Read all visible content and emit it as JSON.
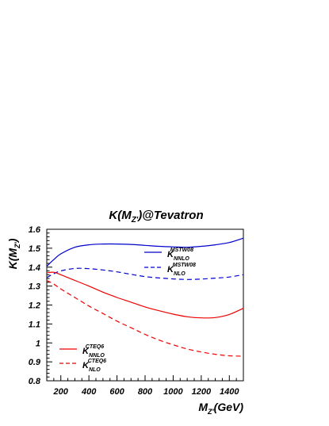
{
  "chart_data": {
    "type": "line",
    "title": "K(M_Z')@Tevatron",
    "title_parts": {
      "pre": "K(M",
      "sub": "Z'",
      "post": ")@Tevatron"
    },
    "xlabel_parts": {
      "pre": "M",
      "sub": "Z'",
      "post": "(GeV)"
    },
    "ylabel_parts": {
      "pre": "K(M",
      "sub": "Z'",
      "post": ")"
    },
    "xlim": [
      100,
      1500
    ],
    "ylim": [
      0.8,
      1.6
    ],
    "x_ticks": [
      200,
      400,
      600,
      800,
      1000,
      1200,
      1400
    ],
    "y_ticks": [
      0.8,
      0.9,
      1,
      1.1,
      1.2,
      1.3,
      1.4,
      1.5,
      1.6
    ],
    "x_tick_labels": [
      "200",
      "400",
      "600",
      "800",
      "1000",
      "1200",
      "1400"
    ],
    "y_tick_labels": [
      "0.8",
      "0.9",
      "1",
      "1.1",
      "1.2",
      "1.3",
      "1.4",
      "1.5",
      "1.6"
    ],
    "grid": false,
    "legend_placement": "inline",
    "series": [
      {
        "name": "K_NNLO^MSTW08",
        "label_main": "K",
        "label_sub": "NNLO",
        "label_sup": "MSTW08",
        "color": "#0000cc",
        "dash": "solid",
        "x": [
          100,
          150,
          200,
          300,
          400,
          500,
          600,
          700,
          800,
          900,
          1000,
          1100,
          1200,
          1300,
          1400,
          1500
        ],
        "y": [
          1.405,
          1.44,
          1.47,
          1.505,
          1.518,
          1.522,
          1.522,
          1.52,
          1.515,
          1.51,
          1.507,
          1.505,
          1.51,
          1.518,
          1.53,
          1.553
        ]
      },
      {
        "name": "K_NLO^MSTW08",
        "label_main": "K",
        "label_sub": "NLO",
        "label_sup": "MSTW08",
        "color": "#0000cc",
        "dash": "dashed",
        "x": [
          100,
          150,
          200,
          300,
          400,
          500,
          600,
          700,
          800,
          900,
          1000,
          1100,
          1200,
          1300,
          1400,
          1500
        ],
        "y": [
          1.345,
          1.365,
          1.38,
          1.393,
          1.392,
          1.385,
          1.375,
          1.362,
          1.35,
          1.343,
          1.338,
          1.335,
          1.337,
          1.342,
          1.348,
          1.36
        ]
      },
      {
        "name": "K_NNLO^CTEQ6",
        "label_main": "K",
        "label_sub": "NNLO",
        "label_sup": "CTEQ6",
        "color": "#ee0000",
        "dash": "solid",
        "x": [
          100,
          150,
          200,
          300,
          400,
          500,
          600,
          700,
          800,
          900,
          1000,
          1100,
          1200,
          1300,
          1400,
          1500
        ],
        "y": [
          1.37,
          1.373,
          1.36,
          1.33,
          1.3,
          1.268,
          1.24,
          1.215,
          1.19,
          1.17,
          1.152,
          1.138,
          1.132,
          1.134,
          1.15,
          1.183
        ]
      },
      {
        "name": "K_NLO^CTEQ6",
        "label_main": "K",
        "label_sub": "NLO",
        "label_sup": "CTEQ6",
        "color": "#ee0000",
        "dash": "dashed",
        "x": [
          100,
          150,
          200,
          300,
          400,
          500,
          600,
          700,
          800,
          900,
          1000,
          1100,
          1200,
          1300,
          1400,
          1500
        ],
        "y": [
          1.33,
          1.31,
          1.285,
          1.24,
          1.195,
          1.155,
          1.115,
          1.08,
          1.045,
          1.015,
          0.99,
          0.968,
          0.952,
          0.94,
          0.932,
          0.93
        ]
      }
    ]
  }
}
